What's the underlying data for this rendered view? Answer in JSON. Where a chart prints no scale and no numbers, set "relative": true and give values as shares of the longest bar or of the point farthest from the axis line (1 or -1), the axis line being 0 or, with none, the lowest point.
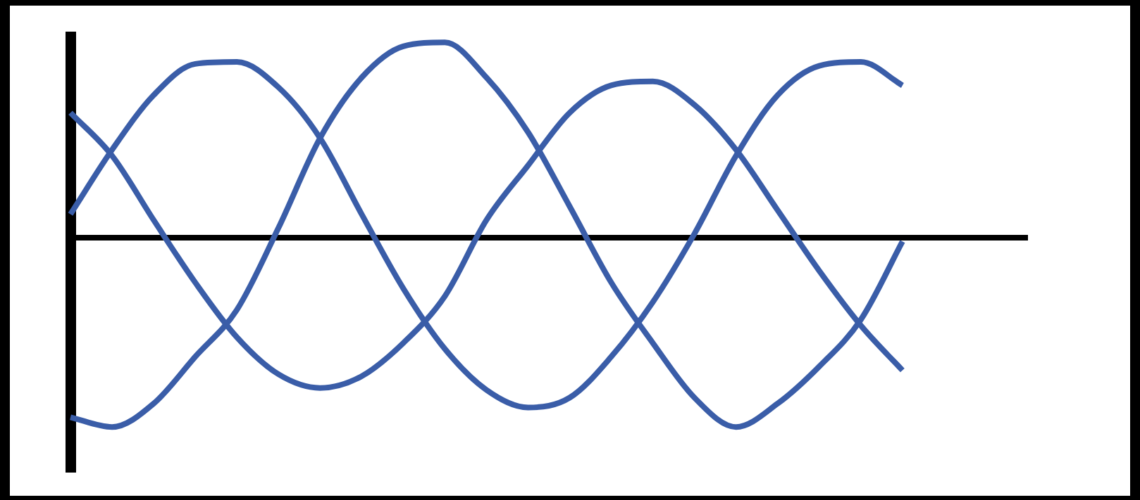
{
  "chart_data": {
    "type": "line",
    "relative": true,
    "categories": [
      null,
      null,
      null,
      null,
      null,
      null,
      null,
      null,
      null,
      null,
      null,
      null,
      null,
      null,
      null,
      null,
      null,
      null,
      null,
      null,
      null,
      null,
      null,
      null
    ],
    "series": [
      {
        "color": "#3a5da8",
        "values": [
          0.64,
          0.42,
          0.09,
          -0.23,
          -0.51,
          -0.7,
          -0.77,
          -0.71,
          -0.54,
          -0.3,
          0.09,
          0.37,
          0.64,
          0.78,
          0.8,
          0.68,
          0.45,
          0.14,
          -0.17,
          -0.45,
          -0.68,
          null,
          null,
          null
        ]
      },
      {
        "color": "#3a5da8",
        "values": [
          -0.92,
          -0.97,
          -0.85,
          -0.61,
          -0.37,
          0.05,
          0.51,
          0.82,
          0.98,
          1,
          0.82,
          0.54,
          0.16,
          -0.23,
          -0.54,
          -0.82,
          -0.97,
          -0.85,
          -0.66,
          -0.42,
          -0.02,
          null,
          null,
          null
        ]
      },
      {
        "color": "#3a5da8",
        "values": [
          0.12,
          0.45,
          0.73,
          0.89,
          0.9,
          0.77,
          0.51,
          0.12,
          -0.26,
          -0.57,
          -0.78,
          -0.87,
          -0.82,
          -0.61,
          -0.33,
          0.02,
          0.42,
          0.73,
          0.88,
          0.9,
          0.78,
          null,
          null,
          null
        ]
      }
    ],
    "grid": false,
    "legend": false,
    "marker": "none",
    "line_style": "solid"
  }
}
